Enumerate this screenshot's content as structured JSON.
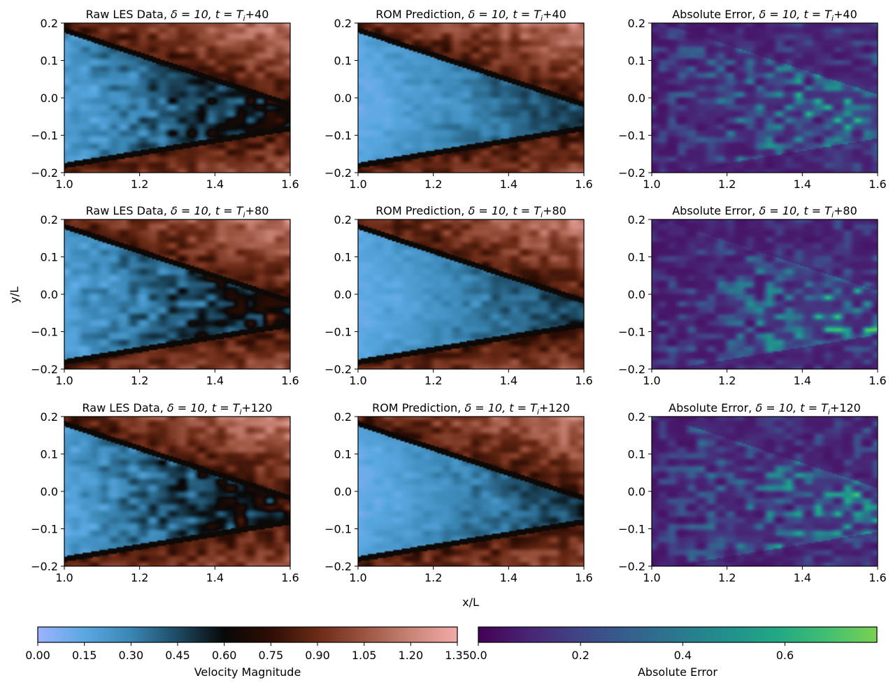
{
  "figure": {
    "shared_xlabel": "x/L",
    "shared_ylabel": "y/L"
  },
  "chart_data": [
    {
      "type": "heatmap",
      "field": "les",
      "title_prefix": "Raw LES Data, ",
      "title_time": "+40",
      "xlim": [
        1.0,
        1.6
      ],
      "ylim": [
        -0.2,
        0.2
      ],
      "xticks": [
        "1.0",
        "1.2",
        "1.4",
        "1.6"
      ],
      "yticks": [
        "0.2",
        "0.1",
        "0.0",
        "−0.1",
        "−0.2"
      ],
      "seed": 11,
      "cmap": "velocity"
    },
    {
      "type": "heatmap",
      "field": "rom",
      "title_prefix": "ROM Prediction, ",
      "title_time": "+40",
      "xlim": [
        1.0,
        1.6
      ],
      "ylim": [
        -0.2,
        0.2
      ],
      "xticks": [
        "1.0",
        "1.2",
        "1.4",
        "1.6"
      ],
      "yticks": [
        "0.2",
        "0.1",
        "0.0",
        "−0.1",
        "−0.2"
      ],
      "seed": 12,
      "cmap": "velocity"
    },
    {
      "type": "heatmap",
      "field": "err",
      "title_prefix": "Absolute Error, ",
      "title_time": "+40",
      "xlim": [
        1.0,
        1.6
      ],
      "ylim": [
        -0.2,
        0.2
      ],
      "xticks": [
        "1.0",
        "1.2",
        "1.4",
        "1.6"
      ],
      "yticks": [
        "0.2",
        "0.1",
        "0.0",
        "−0.1",
        "−0.2"
      ],
      "seed": 13,
      "cmap": "error"
    },
    {
      "type": "heatmap",
      "field": "les",
      "title_prefix": "Raw LES Data, ",
      "title_time": "+80",
      "xlim": [
        1.0,
        1.6
      ],
      "ylim": [
        -0.2,
        0.2
      ],
      "xticks": [
        "1.0",
        "1.2",
        "1.4",
        "1.6"
      ],
      "yticks": [
        "0.2",
        "0.1",
        "0.0",
        "−0.1",
        "−0.2"
      ],
      "seed": 21,
      "cmap": "velocity"
    },
    {
      "type": "heatmap",
      "field": "rom",
      "title_prefix": "ROM Prediction, ",
      "title_time": "+80",
      "xlim": [
        1.0,
        1.6
      ],
      "ylim": [
        -0.2,
        0.2
      ],
      "xticks": [
        "1.0",
        "1.2",
        "1.4",
        "1.6"
      ],
      "yticks": [
        "0.2",
        "0.1",
        "0.0",
        "−0.1",
        "−0.2"
      ],
      "seed": 22,
      "cmap": "velocity"
    },
    {
      "type": "heatmap",
      "field": "err",
      "title_prefix": "Absolute Error, ",
      "title_time": "+80",
      "xlim": [
        1.0,
        1.6
      ],
      "ylim": [
        -0.2,
        0.2
      ],
      "xticks": [
        "1.0",
        "1.2",
        "1.4",
        "1.6"
      ],
      "yticks": [
        "0.2",
        "0.1",
        "0.0",
        "−0.1",
        "−0.2"
      ],
      "seed": 23,
      "cmap": "error"
    },
    {
      "type": "heatmap",
      "field": "les",
      "title_prefix": "Raw LES Data, ",
      "title_time": "+120",
      "xlim": [
        1.0,
        1.6
      ],
      "ylim": [
        -0.2,
        0.2
      ],
      "xticks": [
        "1.0",
        "1.2",
        "1.4",
        "1.6"
      ],
      "yticks": [
        "0.2",
        "0.1",
        "0.0",
        "−0.1",
        "−0.2"
      ],
      "seed": 31,
      "cmap": "velocity"
    },
    {
      "type": "heatmap",
      "field": "rom",
      "title_prefix": "ROM Prediction, ",
      "title_time": "+120",
      "xlim": [
        1.0,
        1.6
      ],
      "ylim": [
        -0.2,
        0.2
      ],
      "xticks": [
        "1.0",
        "1.2",
        "1.4",
        "1.6"
      ],
      "yticks": [
        "0.2",
        "0.1",
        "0.0",
        "−0.1",
        "−0.2"
      ],
      "seed": 32,
      "cmap": "velocity"
    },
    {
      "type": "heatmap",
      "field": "err",
      "title_prefix": "Absolute Error, ",
      "title_time": "+120",
      "xlim": [
        1.0,
        1.6
      ],
      "ylim": [
        -0.2,
        0.2
      ],
      "xticks": [
        "1.0",
        "1.2",
        "1.4",
        "1.6"
      ],
      "yticks": [
        "0.2",
        "0.1",
        "0.0",
        "−0.1",
        "−0.2"
      ],
      "seed": 33,
      "cmap": "error"
    }
  ],
  "title_symbols": {
    "delta_part": "δ = 10, ",
    "t_part": "t = T",
    "sub_i": "i"
  },
  "colorbars": [
    {
      "label": "Velocity Magnitude",
      "ticks": [
        "0.00",
        "0.15",
        "0.30",
        "0.45",
        "0.60",
        "0.75",
        "0.90",
        "1.05",
        "1.20",
        "1.35"
      ],
      "range": [
        0.0,
        1.35
      ],
      "cmap": [
        "#9db3ff",
        "#5aa8e2",
        "#3a86b4",
        "#1d4a63",
        "#080808",
        "#2e0d04",
        "#6a2a16",
        "#9b5440",
        "#c98476",
        "#f4aaa8"
      ]
    },
    {
      "label": "Absolute Error",
      "ticks": [
        "0.0",
        "0.2",
        "0.4",
        "0.6"
      ],
      "range": [
        0.0,
        0.78
      ],
      "cmap": [
        "#440154",
        "#482475",
        "#414487",
        "#355f8d",
        "#2a788e",
        "#21908d",
        "#22a884",
        "#42be71",
        "#7ad151"
      ]
    }
  ],
  "colors": {
    "velocity_low": "#9db3ff",
    "velocity_mid": "#080808",
    "velocity_high": "#f4aaa8",
    "error_low": "#440154",
    "error_high": "#7ad151"
  }
}
